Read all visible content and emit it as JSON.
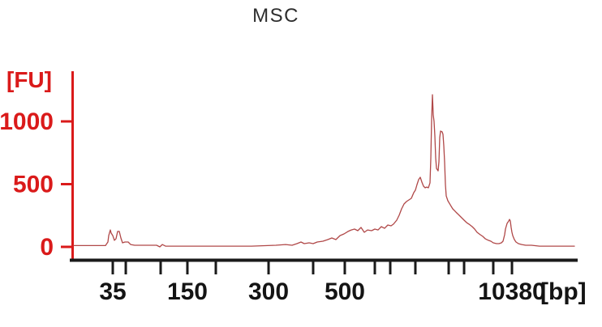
{
  "title": "MSC",
  "colors": {
    "axis_red": "#da1a1a",
    "trace_red": "#b04848",
    "axis_black": "#1a1a1a",
    "label_black": "#141414"
  },
  "chart_data": {
    "type": "line",
    "title": "MSC",
    "description": "Bioanalyzer electropherogram trace: fluorescence [FU] versus size [bp] on a nonlinear migration-time axis",
    "legend": "none",
    "grid": "off",
    "y_axis": {
      "unit_label": "[FU]",
      "ticks": [
        0,
        500,
        1000
      ],
      "range": [
        -60,
        1350
      ]
    },
    "x_axis": {
      "unit_label": "[bp]",
      "scale": "nonlinear (migration time)",
      "ticks": [
        {
          "pos": 0.0773,
          "label": "35"
        },
        {
          "pos": 0.1031,
          "label": ""
        },
        {
          "pos": 0.1723,
          "label": ""
        },
        {
          "pos": 0.2254,
          "label": "150"
        },
        {
          "pos": 0.2818,
          "label": ""
        },
        {
          "pos": 0.3865,
          "label": "300"
        },
        {
          "pos": 0.475,
          "label": ""
        },
        {
          "pos": 0.5378,
          "label": "500"
        },
        {
          "pos": 0.5974,
          "label": ""
        },
        {
          "pos": 0.628,
          "label": ""
        },
        {
          "pos": 0.6779,
          "label": ""
        },
        {
          "pos": 0.744,
          "label": ""
        },
        {
          "pos": 0.7746,
          "label": ""
        },
        {
          "pos": 0.8325,
          "label": ""
        },
        {
          "pos": 0.8696,
          "label": "10380"
        }
      ]
    },
    "trace": [
      [
        0.0,
        10
      ],
      [
        0.0225,
        10
      ],
      [
        0.0467,
        10
      ],
      [
        0.0628,
        10
      ],
      [
        0.0676,
        39
      ],
      [
        0.0692,
        90
      ],
      [
        0.0725,
        135
      ],
      [
        0.0741,
        110
      ],
      [
        0.0773,
        90
      ],
      [
        0.0805,
        52
      ],
      [
        0.0837,
        65
      ],
      [
        0.087,
        123
      ],
      [
        0.0902,
        123
      ],
      [
        0.0934,
        71
      ],
      [
        0.0966,
        32
      ],
      [
        0.1014,
        39
      ],
      [
        0.1079,
        39
      ],
      [
        0.1127,
        19
      ],
      [
        0.1208,
        13
      ],
      [
        0.1433,
        13
      ],
      [
        0.1642,
        13
      ],
      [
        0.1707,
        0
      ],
      [
        0.1755,
        19
      ],
      [
        0.182,
        6
      ],
      [
        0.2238,
        6
      ],
      [
        0.2882,
        6
      ],
      [
        0.3527,
        6
      ],
      [
        0.401,
        13
      ],
      [
        0.4203,
        19
      ],
      [
        0.4332,
        13
      ],
      [
        0.4428,
        26
      ],
      [
        0.4509,
        39
      ],
      [
        0.4573,
        26
      ],
      [
        0.467,
        32
      ],
      [
        0.475,
        26
      ],
      [
        0.4831,
        39
      ],
      [
        0.4944,
        45
      ],
      [
        0.504,
        58
      ],
      [
        0.5121,
        71
      ],
      [
        0.5201,
        58
      ],
      [
        0.5282,
        90
      ],
      [
        0.5362,
        103
      ],
      [
        0.5443,
        123
      ],
      [
        0.5507,
        135
      ],
      [
        0.5572,
        142
      ],
      [
        0.5636,
        129
      ],
      [
        0.57,
        155
      ],
      [
        0.5765,
        116
      ],
      [
        0.5829,
        135
      ],
      [
        0.591,
        129
      ],
      [
        0.5974,
        142
      ],
      [
        0.6039,
        135
      ],
      [
        0.6103,
        161
      ],
      [
        0.6167,
        148
      ],
      [
        0.6232,
        174
      ],
      [
        0.6296,
        168
      ],
      [
        0.6345,
        181
      ],
      [
        0.6409,
        213
      ],
      [
        0.6457,
        252
      ],
      [
        0.6506,
        303
      ],
      [
        0.6554,
        342
      ],
      [
        0.6602,
        361
      ],
      [
        0.6651,
        374
      ],
      [
        0.6699,
        387
      ],
      [
        0.6747,
        432
      ],
      [
        0.678,
        452
      ],
      [
        0.6812,
        497
      ],
      [
        0.6844,
        536
      ],
      [
        0.6876,
        555
      ],
      [
        0.6908,
        516
      ],
      [
        0.6941,
        484
      ],
      [
        0.6973,
        471
      ],
      [
        0.7005,
        477
      ],
      [
        0.7037,
        471
      ],
      [
        0.7069,
        510
      ],
      [
        0.7085,
        703
      ],
      [
        0.7101,
        1019
      ],
      [
        0.7117,
        1213
      ],
      [
        0.7133,
        1052
      ],
      [
        0.715,
        1000
      ],
      [
        0.7166,
        884
      ],
      [
        0.7182,
        710
      ],
      [
        0.7198,
        626
      ],
      [
        0.723,
        606
      ],
      [
        0.7246,
        677
      ],
      [
        0.7262,
        871
      ],
      [
        0.7278,
        923
      ],
      [
        0.7311,
        916
      ],
      [
        0.7327,
        897
      ],
      [
        0.7343,
        806
      ],
      [
        0.7359,
        677
      ],
      [
        0.7375,
        497
      ],
      [
        0.7391,
        406
      ],
      [
        0.7423,
        368
      ],
      [
        0.7472,
        335
      ],
      [
        0.752,
        303
      ],
      [
        0.7585,
        277
      ],
      [
        0.7633,
        258
      ],
      [
        0.7681,
        239
      ],
      [
        0.7746,
        213
      ],
      [
        0.7794,
        194
      ],
      [
        0.7842,
        181
      ],
      [
        0.7907,
        161
      ],
      [
        0.7955,
        142
      ],
      [
        0.8003,
        116
      ],
      [
        0.8068,
        97
      ],
      [
        0.8116,
        84
      ],
      [
        0.8164,
        65
      ],
      [
        0.8228,
        52
      ],
      [
        0.8277,
        45
      ],
      [
        0.8325,
        32
      ],
      [
        0.8389,
        26
      ],
      [
        0.8438,
        26
      ],
      [
        0.8486,
        32
      ],
      [
        0.8518,
        45
      ],
      [
        0.8551,
        97
      ],
      [
        0.8567,
        142
      ],
      [
        0.8599,
        187
      ],
      [
        0.8631,
        206
      ],
      [
        0.8647,
        219
      ],
      [
        0.8663,
        206
      ],
      [
        0.868,
        155
      ],
      [
        0.8696,
        116
      ],
      [
        0.8712,
        90
      ],
      [
        0.8744,
        58
      ],
      [
        0.8776,
        39
      ],
      [
        0.8824,
        26
      ],
      [
        0.8889,
        19
      ],
      [
        0.8969,
        13
      ],
      [
        0.9082,
        13
      ],
      [
        0.9243,
        6
      ],
      [
        0.9485,
        6
      ],
      [
        0.9726,
        6
      ],
      [
        0.9936,
        6
      ]
    ]
  }
}
